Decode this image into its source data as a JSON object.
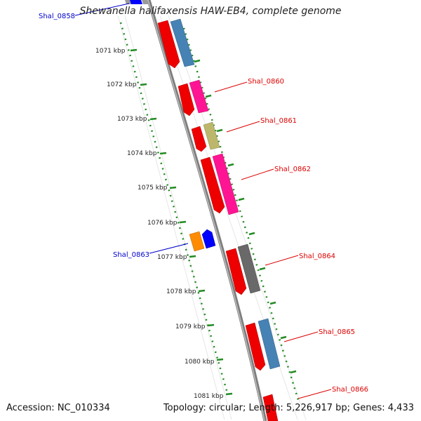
{
  "title": "Shewanella halifaxensis HAW-EB4, complete genome",
  "accession": "Accession: NC_010334",
  "summary": "Topology: circular; Length: 5,226,917 bp; Genes: 4,433",
  "colors": {
    "red": "#ee0000",
    "blue": "#4682b4",
    "pink": "#ff1493",
    "khaki": "#bdb76b",
    "orange": "#ff8c00",
    "navy": "#0000ff",
    "grey": "#696969",
    "backbone": "#8a8a8a",
    "tick": "#228b22",
    "label_red": "#dd0000",
    "label_blue": "#0000cc"
  },
  "scale_ticks": [
    "1071 kbp",
    "1072 kbp",
    "1073 kbp",
    "1074 kbp",
    "1075 kbp",
    "1076 kbp",
    "1077 kbp",
    "1078 kbp",
    "1079 kbp",
    "1080 kbp",
    "1081 kbp"
  ],
  "gene_labels": [
    {
      "text": "Shal_0858",
      "color": "blue"
    },
    {
      "text": "Shal_0860",
      "color": "red"
    },
    {
      "text": "Shal_0861",
      "color": "red"
    },
    {
      "text": "Shal_0862",
      "color": "red"
    },
    {
      "text": "Shal_0863",
      "color": "blue"
    },
    {
      "text": "Shal_0864",
      "color": "red"
    },
    {
      "text": "Shal_0865",
      "color": "red"
    },
    {
      "text": "Shal_0866",
      "color": "red"
    }
  ]
}
